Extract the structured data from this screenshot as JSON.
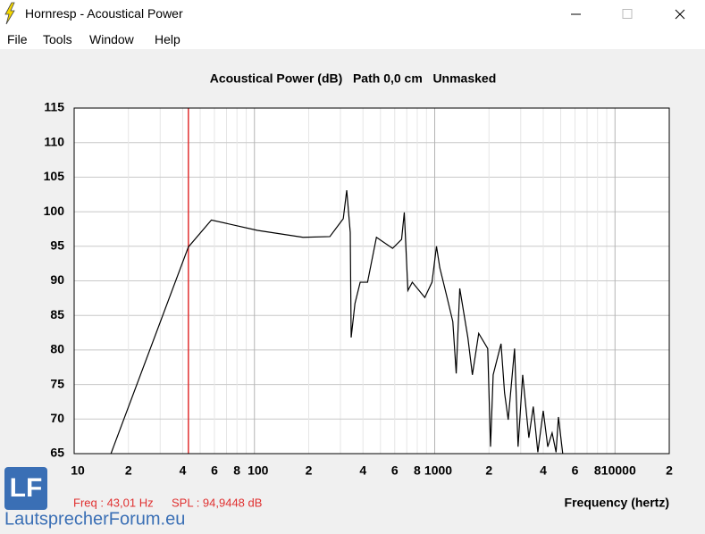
{
  "window": {
    "title": "Hornresp - Acoustical Power"
  },
  "menu": [
    "File",
    "Tools",
    "Window",
    "Help"
  ],
  "status": {
    "freq": "Freq : 43,01 Hz",
    "spl": "SPL : 94,9448 dB"
  },
  "watermark": {
    "logo": "LF",
    "text": "LautsprecherForum.eu"
  },
  "chart_data": {
    "type": "line",
    "title": "Acoustical Power (dB)   Path 0,0 cm   Unmasked",
    "xlabel": "Frequency (hertz)",
    "log_x": true,
    "grid": true,
    "xlim": [
      10,
      20000
    ],
    "ylim": [
      65,
      115
    ],
    "yticks": [
      65,
      70,
      75,
      80,
      85,
      90,
      95,
      100,
      105,
      110,
      115
    ],
    "xticks": [
      10,
      {
        "value": 20,
        "label": "2"
      },
      {
        "value": 40,
        "label": "4"
      },
      {
        "value": 60,
        "label": "6"
      },
      {
        "value": 80,
        "label": "8"
      },
      100,
      {
        "value": 200,
        "label": "2"
      },
      {
        "value": 400,
        "label": "4"
      },
      {
        "value": 600,
        "label": "6"
      },
      {
        "value": 800,
        "label": "8"
      },
      1000,
      {
        "value": 2000,
        "label": "2"
      },
      {
        "value": 4000,
        "label": "4"
      },
      {
        "value": 6000,
        "label": "6"
      },
      {
        "value": 8000,
        "label": "8"
      },
      10000,
      {
        "value": 20000,
        "label": "2"
      }
    ],
    "xminor_grid": [
      30,
      50,
      70,
      90,
      300,
      500,
      700,
      900,
      3000,
      5000,
      7000,
      9000
    ],
    "cursor": {
      "x": 43.01,
      "color": "#e03030"
    },
    "x": [
      16,
      43.01,
      57.7,
      104,
      186,
      262,
      311,
      325,
      340,
      344,
      361,
      386,
      424,
      475,
      584,
      655,
      678,
      710,
      751,
      881,
      966,
      1023,
      1067,
      1161,
      1260,
      1316,
      1377,
      1527,
      1618,
      1754,
      1968,
      2040,
      2110,
      2333,
      2440,
      2557,
      2773,
      2900,
      3076,
      3328,
      3521,
      3733,
      4000,
      4236,
      4480,
      4712,
      4856,
      5130
    ],
    "series": [
      {
        "name": "Acoustical Power",
        "color": "#000000",
        "values": [
          65,
          94.9,
          98.8,
          97.3,
          96.3,
          96.4,
          99,
          103.1,
          97,
          81.8,
          86.7,
          89.8,
          89.8,
          96.3,
          94.7,
          96,
          99.9,
          88.6,
          89.8,
          87.6,
          89.8,
          95,
          91.9,
          88,
          84.1,
          76.6,
          88.9,
          81.8,
          76.4,
          82.4,
          80.2,
          66,
          76.4,
          80.9,
          73.8,
          69.9,
          80.2,
          66,
          76.4,
          67.3,
          71.8,
          65.2,
          71.2,
          66,
          68,
          65.2,
          70.3,
          65
        ]
      }
    ]
  }
}
